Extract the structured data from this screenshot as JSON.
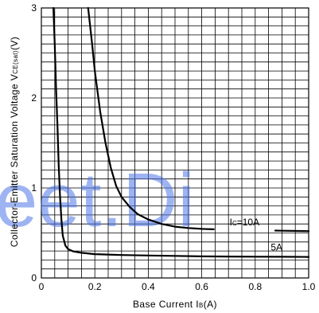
{
  "chart_data": {
    "type": "line",
    "xlabel": "Base Current I",
    "xlabel_sub": "B",
    "xlabel_unit": "(A)",
    "ylabel": "Collector-Emitter Saturation Voltage V",
    "ylabel_sub": "CE(sat)",
    "ylabel_unit": "(V)",
    "xlim": [
      0,
      1.0
    ],
    "ylim": [
      0,
      3
    ],
    "grid": true,
    "x_minor_step": 0.05,
    "y_minor_step": 0.1,
    "x_ticks": [
      0,
      0.2,
      0.4,
      0.6,
      0.8,
      1.0
    ],
    "x_tick_labels": [
      "0",
      "0.2",
      "0.4",
      "0.6",
      "0.8",
      "1.0"
    ],
    "y_ticks": [
      0,
      1,
      2,
      3
    ],
    "y_tick_labels": [
      "0",
      "1",
      "2",
      "3"
    ],
    "series": [
      {
        "name": "I",
        "label_sub": "C",
        "label_suffix": "=10A",
        "label_anchor": [
          0.76,
          0.585
        ],
        "label_gap": [
          0.645,
          0.875
        ],
        "x": [
          0.175,
          0.19,
          0.2,
          0.22,
          0.24,
          0.26,
          0.28,
          0.3,
          0.33,
          0.36,
          0.4,
          0.45,
          0.5,
          0.55,
          0.6,
          0.7,
          0.8,
          0.9,
          1.0
        ],
        "y": [
          3.0,
          2.6,
          2.3,
          1.85,
          1.5,
          1.22,
          1.02,
          0.9,
          0.79,
          0.71,
          0.65,
          0.6,
          0.57,
          0.555,
          0.545,
          0.535,
          0.53,
          0.525,
          0.52
        ]
      },
      {
        "name": "5A",
        "label_anchor": [
          0.88,
          0.305
        ],
        "x": [
          0.045,
          0.05,
          0.055,
          0.06,
          0.065,
          0.07,
          0.075,
          0.08,
          0.09,
          0.1,
          0.12,
          0.15,
          0.2,
          0.3,
          0.4,
          0.5,
          0.6,
          0.7,
          0.8,
          0.9,
          1.0
        ],
        "y": [
          3.0,
          2.6,
          2.1,
          1.7,
          1.25,
          0.9,
          0.65,
          0.47,
          0.36,
          0.32,
          0.295,
          0.28,
          0.265,
          0.255,
          0.25,
          0.245,
          0.24,
          0.238,
          0.236,
          0.235,
          0.234
        ]
      }
    ]
  },
  "watermark": "eet.Di"
}
